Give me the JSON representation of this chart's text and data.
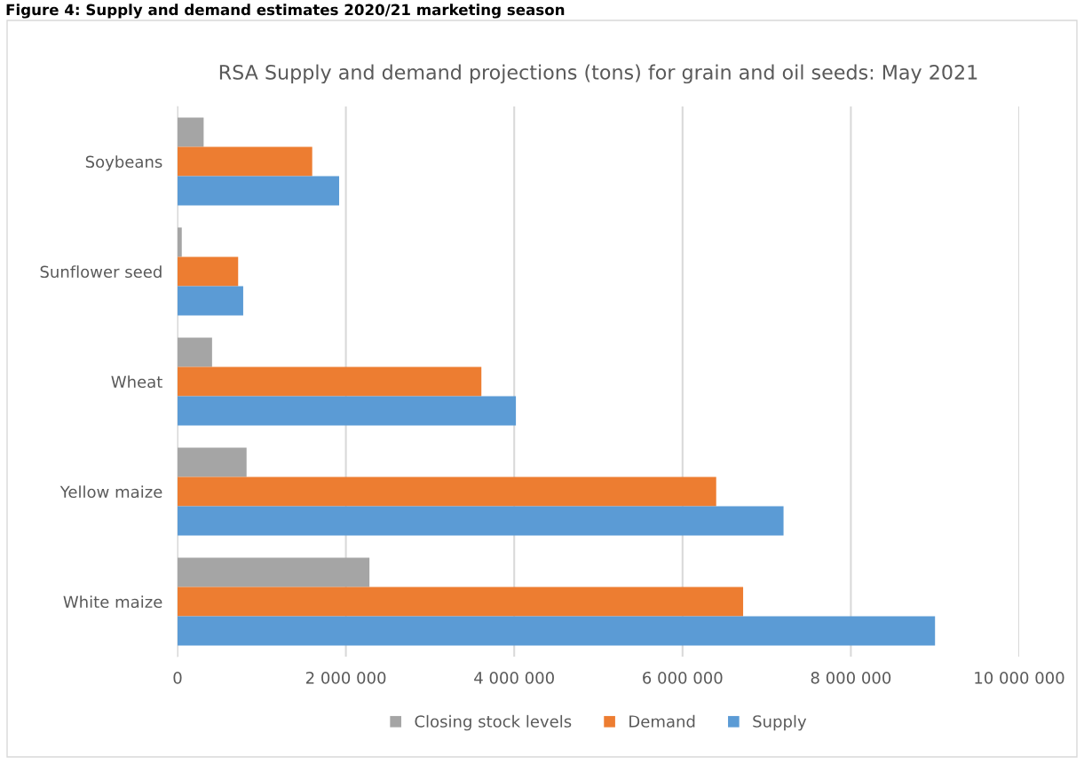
{
  "chart_data": {
    "type": "bar",
    "orientation": "horizontal",
    "title": "RSA Supply and demand projections (tons) for grain and oil seeds: May 2021",
    "annotations": [
      "Figure 4: Supply and demand estimates 2020/21 marketing season"
    ],
    "categories": [
      "Soybeans",
      "Sunflower seed",
      "Wheat",
      "Yellow maize",
      "White maize"
    ],
    "series": [
      {
        "name": "Closing stock levels",
        "color": "#a5a5a5",
        "values": [
          310000,
          50000,
          410000,
          820000,
          2280000
        ]
      },
      {
        "name": "Demand",
        "color": "#ed7d31",
        "values": [
          1600000,
          720000,
          3610000,
          6400000,
          6720000
        ]
      },
      {
        "name": "Supply",
        "color": "#5b9bd5",
        "values": [
          1920000,
          780000,
          4020000,
          7200000,
          9000000
        ]
      }
    ],
    "xlim": [
      0,
      10000000
    ],
    "xticks": [
      {
        "value": 0,
        "label": "0"
      },
      {
        "value": 2000000,
        "label": "2 000 000"
      },
      {
        "value": 4000000,
        "label": "4 000 000"
      },
      {
        "value": 6000000,
        "label": "6 000 000"
      },
      {
        "value": 8000000,
        "label": "8 000 000"
      },
      {
        "value": 10000000,
        "label": "10 000 000"
      }
    ],
    "grid": "x",
    "legend": "bottom"
  }
}
